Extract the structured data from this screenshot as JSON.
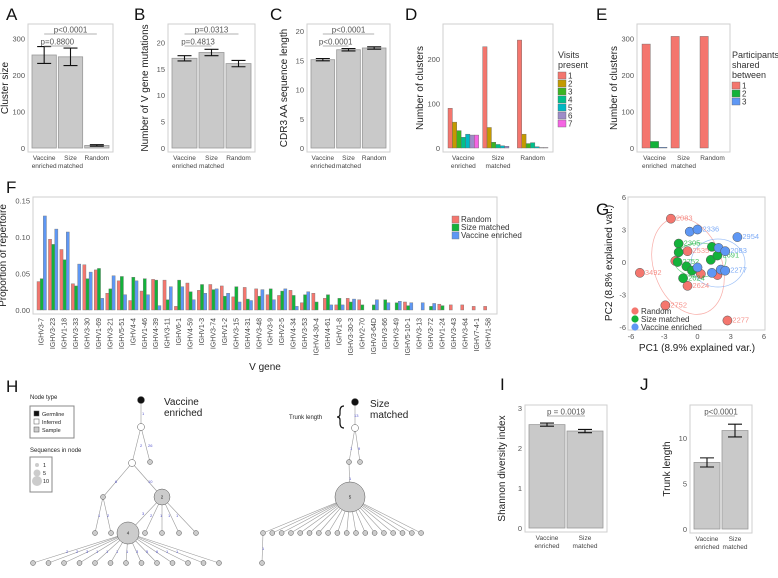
{
  "colors": {
    "bar_gray": "#c9c9c9",
    "random": "#f4766e",
    "size_matched": "#13b23a",
    "vaccine_enriched": "#5e97f4",
    "visits": [
      "#f4766e",
      "#c49a00",
      "#3cb521",
      "#00c08b",
      "#00b8c4",
      "#9e8cc8",
      "#f564e3"
    ]
  },
  "chart_data": [
    {
      "id": "A",
      "panel_label": "A",
      "type": "bar",
      "ylabel": "Cluster size",
      "ylim": [
        0,
        340
      ],
      "yticks": [
        "0",
        "100",
        "200",
        "300"
      ],
      "ytick_values": [
        0,
        100,
        200,
        300
      ],
      "categories": [
        [
          "Vaccine",
          "enriched"
        ],
        [
          "Size",
          "matched"
        ],
        [
          "Random"
        ]
      ],
      "values": [
        255,
        250,
        7
      ],
      "errors": [
        23,
        24,
        2
      ],
      "comparisons": [
        {
          "pair": [
            0,
            2
          ],
          "label": "p<0.0001"
        },
        {
          "pair": [
            0,
            1
          ],
          "label": "p=0.8800"
        }
      ]
    },
    {
      "id": "B",
      "panel_label": "B",
      "type": "bar",
      "ylabel": "Number of V gene mutations",
      "ylim": [
        0,
        23.5
      ],
      "yticks": [
        "0",
        "5",
        "10",
        "15",
        "20"
      ],
      "ytick_values": [
        0,
        5,
        10,
        15,
        20
      ],
      "categories": [
        [
          "Vaccine",
          "enriched"
        ],
        [
          "Size",
          "matched"
        ],
        [
          "Random"
        ]
      ],
      "values": [
        17.0,
        18.1,
        16.0
      ],
      "errors": [
        0.5,
        0.6,
        0.6
      ],
      "comparisons": [
        {
          "pair": [
            0,
            2
          ],
          "label": "p=0.0313"
        },
        {
          "pair": [
            0,
            1
          ],
          "label": "p=0.4813"
        }
      ]
    },
    {
      "id": "C",
      "panel_label": "C",
      "type": "bar",
      "ylabel": "CDR3 AA sequence length",
      "ylim": [
        0,
        21.2
      ],
      "yticks": [
        "0",
        "5",
        "10",
        "15",
        "20"
      ],
      "ytick_values": [
        0,
        5,
        10,
        15,
        20
      ],
      "categories": [
        [
          "Vaccine",
          "enriched"
        ],
        [
          "Size",
          "matched"
        ],
        [
          "Random"
        ]
      ],
      "values": [
        15.1,
        16.8,
        17.1
      ],
      "errors": [
        0.2,
        0.2,
        0.2
      ],
      "comparisons": [
        {
          "pair": [
            0,
            2
          ],
          "label": "p<0.0001"
        },
        {
          "pair": [
            0,
            1
          ],
          "label": "p<0.0001"
        }
      ]
    },
    {
      "id": "D",
      "panel_label": "D",
      "type": "bar",
      "ylabel": "Number of clusters",
      "ylim": [
        0,
        278
      ],
      "yticks": [
        "0",
        "100",
        "200"
      ],
      "ytick_values": [
        0,
        100,
        200
      ],
      "categories": [
        [
          "Vaccine",
          "enriched"
        ],
        [
          "Size",
          "matched"
        ],
        [
          "Random"
        ]
      ],
      "legend_title": [
        "Visits",
        "present"
      ],
      "series": [
        {
          "name": "1",
          "values": [
            89,
            227,
            242
          ]
        },
        {
          "name": "2",
          "values": [
            58,
            46,
            31
          ]
        },
        {
          "name": "3",
          "values": [
            39,
            13,
            10
          ]
        },
        {
          "name": "4",
          "values": [
            24,
            8,
            12
          ]
        },
        {
          "name": "5",
          "values": [
            31,
            5,
            3
          ]
        },
        {
          "name": "6",
          "values": [
            29,
            4,
            1
          ]
        },
        {
          "name": "7",
          "values": [
            29,
            0,
            1
          ]
        }
      ]
    },
    {
      "id": "E",
      "panel_label": "E",
      "type": "bar",
      "ylabel": "Number of clusters",
      "ylim": [
        0,
        340
      ],
      "yticks": [
        "0",
        "100",
        "200",
        "300"
      ],
      "ytick_values": [
        0,
        100,
        200,
        300
      ],
      "categories": [
        [
          "Vaccine",
          "enriched"
        ],
        [
          "Size",
          "matched"
        ],
        [
          "Random"
        ]
      ],
      "legend_title": [
        "Participants",
        "shared",
        "between"
      ],
      "series": [
        {
          "name": "1",
          "values": [
            285,
            306,
            306
          ]
        },
        {
          "name": "2",
          "values": [
            18,
            0,
            0
          ]
        },
        {
          "name": "3",
          "values": [
            2,
            0,
            0
          ]
        }
      ]
    },
    {
      "id": "F",
      "panel_label": "F",
      "type": "bar",
      "ylabel": "Proportion of repertoire",
      "xlabel": "V gene",
      "ylim": [
        0,
        0.155
      ],
      "yticks": [
        "0.00",
        "0.05",
        "0.10",
        "0.15"
      ],
      "ytick_values": [
        0,
        0.05,
        0.1,
        0.15
      ],
      "categories": [
        "IGHV3-7",
        "IGHV3-23",
        "IGHV1-18",
        "IGHV3-33",
        "IGHV3-30",
        "IGHV1-69",
        "IGHV3-21",
        "IGHV5-51",
        "IGHV4-4",
        "IGHV1-46",
        "IGHV4-39",
        "IGHV3-11",
        "IGHV6-1",
        "IGHV4-59",
        "IGHV1-3",
        "IGHV3-74",
        "IGHV1-2",
        "IGHV3-15",
        "IGHV4-31",
        "IGHV3-48",
        "IGHV3-9",
        "IGHV2-5",
        "IGHV4-34",
        "IGHV3-53",
        "IGHV4-30-4",
        "IGHV4-61",
        "IGHV1-8",
        "IGHV3-30-3",
        "IGHV2-70",
        "IGHV3-64D",
        "IGHV3-66",
        "IGHV3-49",
        "IGHV5-10-1",
        "IGHV3-13",
        "IGHV3-72",
        "IGHV1-24",
        "IGHV3-43",
        "IGHV3-64",
        "IGHV7-4-1",
        "IGHV1-58"
      ],
      "series": [
        {
          "name": "Random",
          "values": [
            0.039,
            0.097,
            0.083,
            0.036,
            0.062,
            0.055,
            0.023,
            0.04,
            0.013,
            0.026,
            0.042,
            0.041,
            0.005,
            0.037,
            0.027,
            0.035,
            0.033,
            0.018,
            0.031,
            0.029,
            0.021,
            0.02,
            0.027,
            0.01,
            0.023,
            0.016,
            0.007,
            0.016,
            0.014,
            0,
            0,
            0,
            0.011,
            0,
            0,
            0.008,
            0.007,
            0.007,
            0.005,
            0.005
          ]
        },
        {
          "name": "Size matched",
          "values": [
            0.043,
            0.09,
            0.069,
            0.033,
            0.043,
            0.057,
            0.029,
            0.046,
            0.045,
            0.043,
            0.041,
            0.014,
            0.041,
            0.025,
            0.035,
            0.028,
            0.019,
            0.032,
            0.015,
            0.019,
            0.029,
            0.026,
            0.02,
            0.021,
            0.011,
            0.021,
            0.016,
            0.011,
            0.007,
            0.007,
            0.014,
            0.01,
            0.006,
            0,
            0.005,
            0.006,
            0,
            0,
            0,
            0
          ]
        },
        {
          "name": "Vaccine enriched",
          "values": [
            0.129,
            0.111,
            0.107,
            0.063,
            0.052,
            0.016,
            0.047,
            0.021,
            0.04,
            0.021,
            0.006,
            0.032,
            0.032,
            0.014,
            0.023,
            0.029,
            0.023,
            0.011,
            0.013,
            0.028,
            0.014,
            0.029,
            0.005,
            0.025,
            0,
            0.007,
            0.007,
            0.015,
            0,
            0.014,
            0.01,
            0.012,
            0.01,
            0.01,
            0.009,
            0,
            0,
            0,
            0,
            0
          ]
        }
      ],
      "legend": "top-right"
    },
    {
      "id": "G",
      "panel_label": "G",
      "type": "scatter",
      "xlabel": "PC1 (8.9% explained var.)",
      "ylabel": "PC2 (8.8% explained var.)",
      "xlim": [
        -6,
        6
      ],
      "ylim": [
        -6,
        6
      ],
      "xticks": [
        "-6",
        "-3",
        "0",
        "3",
        "6"
      ],
      "yticks": [
        "-6",
        "-3",
        "0",
        "3",
        "6"
      ],
      "tick_values": [
        -6,
        -3,
        0,
        3,
        6
      ],
      "legend": "bottom-left",
      "series": [
        {
          "name": "Random",
          "points": [
            [
              -2.4,
              4.0,
              "2083"
            ],
            [
              -5.2,
              -1.0,
              "3492"
            ],
            [
              -2.9,
              -4.0,
              "2752"
            ],
            [
              2.7,
              -5.4,
              "2277"
            ],
            [
              -0.9,
              -2.2,
              "2624"
            ],
            [
              -0.9,
              1.0,
              "2535"
            ],
            [
              -2.0,
              0.1,
              ""
            ],
            [
              0.3,
              -1.1,
              ""
            ],
            [
              1.8,
              -1.2,
              ""
            ]
          ]
        },
        {
          "name": "Size matched",
          "points": [
            [
              -1.7,
              1.7,
              "2305"
            ],
            [
              -1.7,
              0.9,
              ""
            ],
            [
              -1.8,
              0.0,
              "2752"
            ],
            [
              -1.0,
              -0.4,
              ""
            ],
            [
              -0.5,
              -0.8,
              ""
            ],
            [
              -1.3,
              -1.5,
              "2624"
            ],
            [
              1.3,
              1.4,
              ""
            ],
            [
              1.2,
              0.2,
              ""
            ],
            [
              1.8,
              0.6,
              "2691"
            ]
          ]
        },
        {
          "name": "Vaccine enriched",
          "points": [
            [
              -0.7,
              2.8,
              ""
            ],
            [
              0.0,
              3.0,
              "2336"
            ],
            [
              3.6,
              2.3,
              "2954"
            ],
            [
              1.9,
              1.3,
              ""
            ],
            [
              2.5,
              1.0,
              "2083"
            ],
            [
              2.1,
              -0.7,
              ""
            ],
            [
              2.5,
              -0.8,
              "2277"
            ],
            [
              1.3,
              -1.0,
              ""
            ],
            [
              0.0,
              -0.5,
              ""
            ]
          ]
        }
      ]
    },
    {
      "id": "I",
      "panel_label": "I",
      "type": "bar",
      "ylabel": "Shannon diversity index",
      "ylim": [
        0,
        3.07
      ],
      "yticks": [
        "0",
        "1",
        "2",
        "3"
      ],
      "ytick_values": [
        0,
        1,
        2,
        3
      ],
      "categories": [
        [
          "Vaccine",
          "enriched"
        ],
        [
          "Size",
          "matched"
        ]
      ],
      "values": [
        2.58,
        2.42
      ],
      "errors": [
        0.04,
        0.04
      ],
      "comparisons": [
        {
          "pair": [
            0,
            1
          ],
          "label": "p = 0.0019"
        }
      ]
    },
    {
      "id": "J",
      "panel_label": "J",
      "type": "bar",
      "ylabel": "Trunk length",
      "ylim": [
        0,
        13.6
      ],
      "yticks": [
        "0",
        "5",
        "10"
      ],
      "ytick_values": [
        0,
        5,
        10
      ],
      "categories": [
        [
          "Vaccine",
          "enriched"
        ],
        [
          "Size",
          "matched"
        ]
      ],
      "values": [
        7.3,
        10.8
      ],
      "errors": [
        0.5,
        0.7
      ],
      "comparisons": [
        {
          "pair": [
            0,
            1
          ],
          "label": "p<0.0001"
        }
      ]
    }
  ],
  "trees": {
    "panel_label": "H",
    "legend": {
      "node_type_title": "Node type",
      "node_types": [
        "Germline",
        "Inferred",
        "Sample"
      ],
      "size_title": "Sequences in node",
      "sizes": [
        "1",
        "5",
        "10"
      ]
    },
    "vaccine": {
      "title": [
        "Vaccine",
        "enriched"
      ],
      "big_nodes": [
        "2",
        "4"
      ],
      "edge_labels": [
        "1",
        "2",
        "26",
        "6",
        "10",
        "1",
        "2",
        "3",
        "2",
        "1",
        "1",
        "1",
        "2",
        "2",
        "3",
        "1",
        "1",
        "1",
        "1",
        "3",
        "5",
        "6",
        "1",
        "1"
      ]
    },
    "size": {
      "title": [
        "Size",
        "matched"
      ],
      "trunk_label": "Trunk length",
      "trunk_value": "13",
      "big_node": "5",
      "edge_labels": [
        "1",
        "9",
        "1",
        "1"
      ]
    }
  }
}
